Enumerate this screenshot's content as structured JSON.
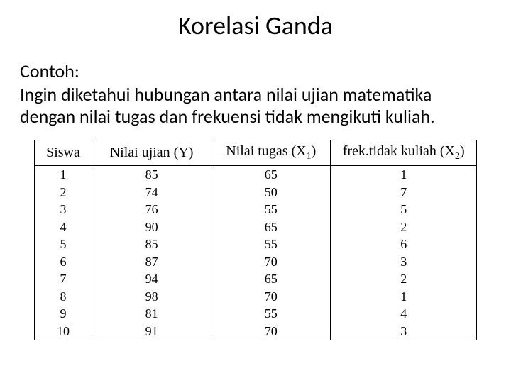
{
  "title": "Korelasi Ganda",
  "contoh_label": "Contoh:",
  "description": "Ingin diketahui hubungan antara nilai ujian matematika dengan nilai tugas dan frekuensi tidak mengikuti kuliah.",
  "table": {
    "columns": {
      "siswa": "Siswa",
      "y_pre": "Nilai ujian (Y)",
      "x1_pre": "Nilai tugas (X",
      "x1_sub": "1",
      "x1_post": ")",
      "x2_pre": "frek.tidak kuliah (X",
      "x2_sub": "2",
      "x2_post": ")"
    },
    "rows": [
      {
        "siswa": "1",
        "y": "85",
        "x1": "65",
        "x2": "1"
      },
      {
        "siswa": "2",
        "y": "74",
        "x1": "50",
        "x2": "7"
      },
      {
        "siswa": "3",
        "y": "76",
        "x1": "55",
        "x2": "5"
      },
      {
        "siswa": "4",
        "y": "90",
        "x1": "65",
        "x2": "2"
      },
      {
        "siswa": "5",
        "y": "85",
        "x1": "55",
        "x2": "6"
      },
      {
        "siswa": "6",
        "y": "87",
        "x1": "70",
        "x2": "3"
      },
      {
        "siswa": "7",
        "y": "94",
        "x1": "65",
        "x2": "2"
      },
      {
        "siswa": "8",
        "y": "98",
        "x1": "70",
        "x2": "1"
      },
      {
        "siswa": "9",
        "y": "81",
        "x1": "55",
        "x2": "4"
      },
      {
        "siswa": "10",
        "y": "91",
        "x1": "70",
        "x2": "3"
      }
    ],
    "header_fontsize": 20,
    "cell_fontsize": 18,
    "border_color": "#000000",
    "background_color": "#ffffff"
  },
  "colors": {
    "background": "#ffffff",
    "text": "#000000"
  }
}
